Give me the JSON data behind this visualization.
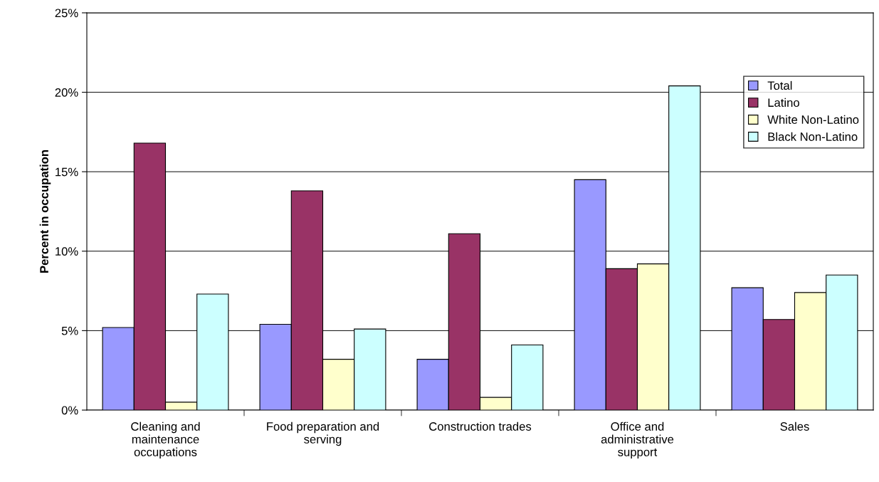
{
  "chart_data": {
    "type": "bar",
    "ylabel": "Percent in occupation",
    "categories": [
      "Cleaning and\nmaintenance\noccupations",
      "Food preparation and\nserving",
      "Construction trades",
      "Office and\nadministrative\nsupport",
      "Sales"
    ],
    "series": [
      {
        "name": "Total",
        "color": "#9999ff",
        "values": [
          5.2,
          5.4,
          3.2,
          14.5,
          7.7
        ]
      },
      {
        "name": "Latino",
        "color": "#993366",
        "values": [
          16.8,
          13.8,
          11.1,
          8.9,
          5.7
        ]
      },
      {
        "name": "White Non-Latino",
        "color": "#ffffcc",
        "values": [
          0.5,
          3.2,
          0.8,
          9.2,
          7.4
        ]
      },
      {
        "name": "Black Non-Latino",
        "color": "#ccffff",
        "values": [
          7.3,
          5.1,
          4.1,
          20.4,
          8.5
        ]
      }
    ],
    "ylim": [
      0,
      25
    ],
    "yticks": [
      {
        "value": 0,
        "label": "0%"
      },
      {
        "value": 5,
        "label": "5%"
      },
      {
        "value": 10,
        "label": "10%"
      },
      {
        "value": 15,
        "label": "15%"
      },
      {
        "value": 20,
        "label": "20%"
      },
      {
        "value": 25,
        "label": "25%"
      }
    ],
    "grid": "y",
    "legend": "right"
  }
}
